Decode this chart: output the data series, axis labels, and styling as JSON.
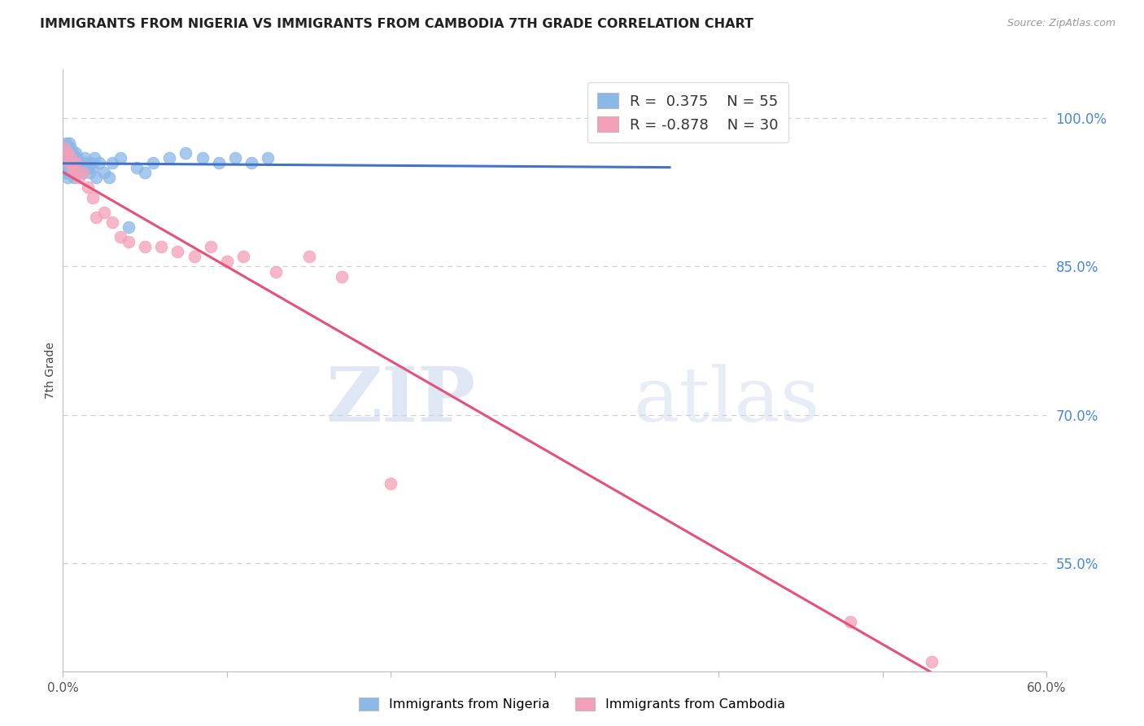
{
  "title": "IMMIGRANTS FROM NIGERIA VS IMMIGRANTS FROM CAMBODIA 7TH GRADE CORRELATION CHART",
  "source": "Source: ZipAtlas.com",
  "ylabel": "7th Grade",
  "right_yticks": [
    "100.0%",
    "85.0%",
    "70.0%",
    "55.0%"
  ],
  "right_ytick_vals": [
    1.0,
    0.85,
    0.7,
    0.55
  ],
  "xlim": [
    0.0,
    0.6
  ],
  "ylim": [
    0.44,
    1.05
  ],
  "nigeria_color": "#8ab8e8",
  "cambodia_color": "#f4a0b8",
  "nigeria_line_color": "#4472c4",
  "cambodia_line_color": "#e8507a",
  "R_nigeria": 0.375,
  "N_nigeria": 55,
  "R_cambodia": -0.878,
  "N_cambodia": 30,
  "nigeria_x": [
    0.001,
    0.001,
    0.001,
    0.002,
    0.002,
    0.002,
    0.002,
    0.003,
    0.003,
    0.003,
    0.003,
    0.004,
    0.004,
    0.004,
    0.004,
    0.005,
    0.005,
    0.005,
    0.006,
    0.006,
    0.006,
    0.007,
    0.007,
    0.007,
    0.008,
    0.008,
    0.009,
    0.009,
    0.01,
    0.011,
    0.012,
    0.013,
    0.014,
    0.015,
    0.016,
    0.017,
    0.018,
    0.019,
    0.02,
    0.022,
    0.025,
    0.028,
    0.03,
    0.035,
    0.04,
    0.045,
    0.05,
    0.055,
    0.065,
    0.075,
    0.085,
    0.095,
    0.105,
    0.115,
    0.125
  ],
  "nigeria_y": [
    0.97,
    0.96,
    0.95,
    0.975,
    0.965,
    0.955,
    0.945,
    0.97,
    0.96,
    0.95,
    0.94,
    0.975,
    0.965,
    0.955,
    0.945,
    0.97,
    0.96,
    0.95,
    0.965,
    0.955,
    0.945,
    0.96,
    0.95,
    0.94,
    0.965,
    0.955,
    0.96,
    0.95,
    0.955,
    0.95,
    0.945,
    0.96,
    0.955,
    0.95,
    0.945,
    0.955,
    0.95,
    0.96,
    0.94,
    0.955,
    0.945,
    0.94,
    0.955,
    0.96,
    0.89,
    0.95,
    0.945,
    0.955,
    0.96,
    0.965,
    0.96,
    0.955,
    0.96,
    0.955,
    0.96
  ],
  "cambodia_x": [
    0.001,
    0.002,
    0.003,
    0.004,
    0.005,
    0.006,
    0.007,
    0.008,
    0.01,
    0.012,
    0.015,
    0.018,
    0.02,
    0.025,
    0.03,
    0.035,
    0.04,
    0.05,
    0.06,
    0.07,
    0.08,
    0.09,
    0.1,
    0.11,
    0.13,
    0.15,
    0.17,
    0.2,
    0.48,
    0.53
  ],
  "cambodia_y": [
    0.97,
    0.96,
    0.965,
    0.955,
    0.96,
    0.95,
    0.945,
    0.955,
    0.94,
    0.945,
    0.93,
    0.92,
    0.9,
    0.905,
    0.895,
    0.88,
    0.875,
    0.87,
    0.87,
    0.865,
    0.86,
    0.87,
    0.855,
    0.86,
    0.845,
    0.86,
    0.84,
    0.63,
    0.49,
    0.45
  ],
  "watermark_zip": "ZIP",
  "watermark_atlas": "atlas",
  "background_color": "#ffffff",
  "grid_color": "#d0d0d0"
}
